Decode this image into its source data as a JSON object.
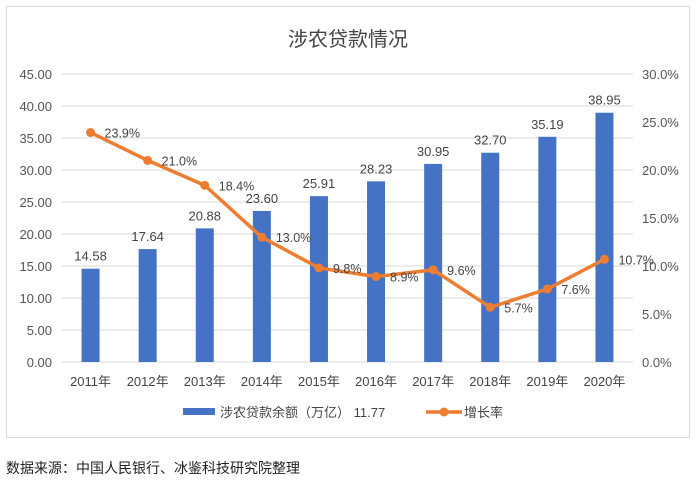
{
  "chart_data": {
    "type": "bar+line",
    "title": "涉农贷款情况",
    "categories": [
      "2011年",
      "2012年",
      "2013年",
      "2014年",
      "2015年",
      "2016年",
      "2017年",
      "2018年",
      "2019年",
      "2020年"
    ],
    "series": [
      {
        "name": "涉农贷款余额（万亿） 11.77",
        "type": "bar",
        "axis": "left",
        "color": "#4472c4",
        "values": [
          14.58,
          17.64,
          20.88,
          23.6,
          25.91,
          28.23,
          30.95,
          32.7,
          35.19,
          38.95
        ],
        "labels": [
          "14.58",
          "17.64",
          "20.88",
          "23.60",
          "25.91",
          "28.23",
          "30.95",
          "32.70",
          "35.19",
          "38.95"
        ]
      },
      {
        "name": "增长率",
        "type": "line",
        "axis": "right",
        "color": "#ed7d31",
        "values": [
          23.9,
          21.0,
          18.4,
          13.0,
          9.8,
          8.9,
          9.6,
          5.7,
          7.6,
          10.7
        ],
        "labels": [
          "23.9%",
          "21.0%",
          "18.4%",
          "13.0%",
          "9.8%",
          "8.9%",
          "9.6%",
          "5.7%",
          "7.6%",
          "10.7%"
        ]
      }
    ],
    "ylim": [
      0,
      45
    ],
    "yticks": [
      "0.00",
      "5.00",
      "10.00",
      "15.00",
      "20.00",
      "25.00",
      "30.00",
      "35.00",
      "40.00",
      "45.00"
    ],
    "y2lim": [
      0,
      30
    ],
    "y2ticks": [
      "0.0%",
      "5.0%",
      "10.0%",
      "15.0%",
      "20.0%",
      "25.0%",
      "30.0%"
    ],
    "grid": true,
    "legend": "bottom"
  },
  "source": "数据来源：中国人民银行、冰鉴科技研究院整理"
}
